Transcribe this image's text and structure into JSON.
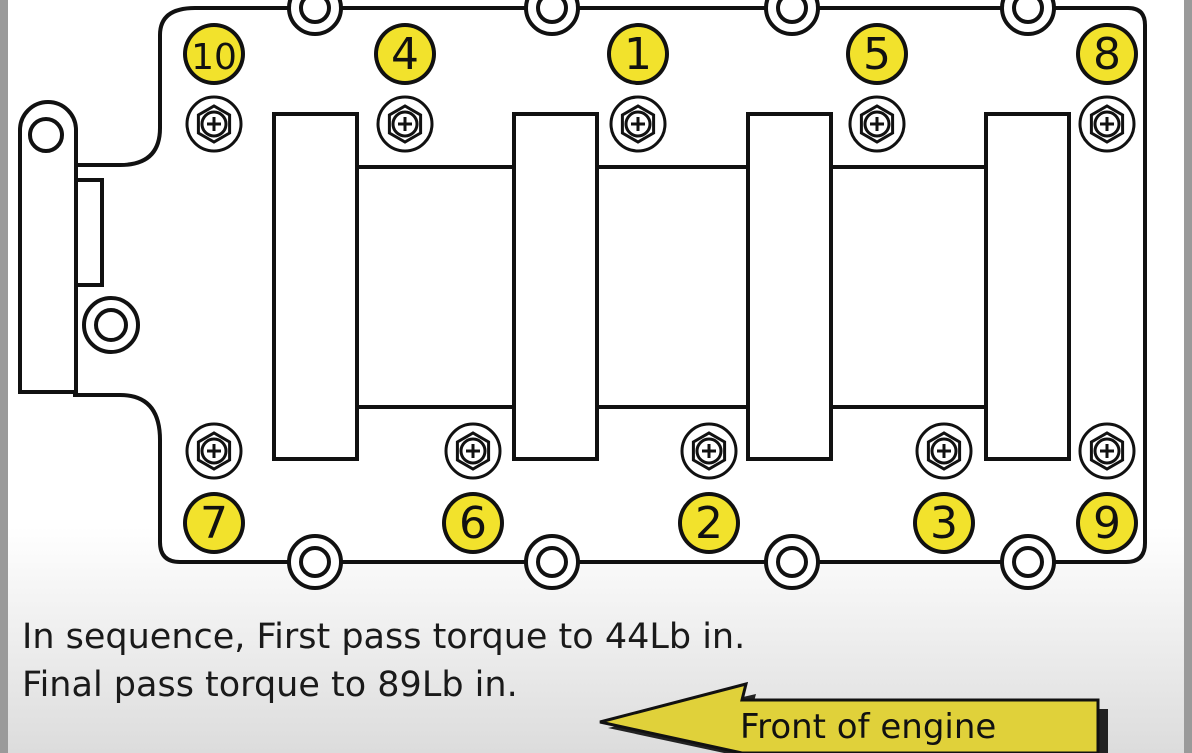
{
  "diagram": {
    "bolts": [
      {
        "number": "10",
        "row": "top",
        "column": 1
      },
      {
        "number": "4",
        "row": "top",
        "column": 2
      },
      {
        "number": "1",
        "row": "top",
        "column": 3
      },
      {
        "number": "5",
        "row": "top",
        "column": 4
      },
      {
        "number": "8",
        "row": "top",
        "column": 5
      },
      {
        "number": "7",
        "row": "bottom",
        "column": 1
      },
      {
        "number": "6",
        "row": "bottom",
        "column": 2
      },
      {
        "number": "2",
        "row": "bottom",
        "column": 3
      },
      {
        "number": "3",
        "row": "bottom",
        "column": 4
      },
      {
        "number": "9",
        "row": "bottom",
        "column": 5
      }
    ],
    "badge_color": "#f2e22c",
    "line_color": "#111111"
  },
  "caption": {
    "line1": "In sequence, First pass torque to 44Lb in.",
    "line2": "Final pass torque to 89Lb in."
  },
  "arrow": {
    "label": "Front of engine",
    "color": "#e0d13a"
  }
}
